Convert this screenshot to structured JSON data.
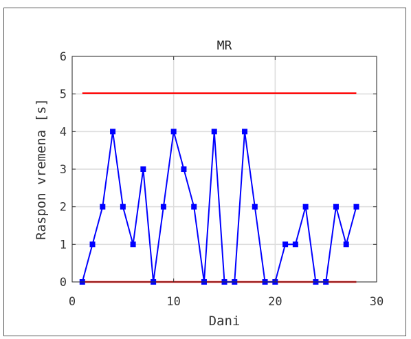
{
  "chart_data": {
    "type": "line",
    "title": "MR",
    "xlabel": "Dani",
    "ylabel": "Raspon vremena [s]",
    "xlim": [
      0,
      30
    ],
    "ylim": [
      0,
      6
    ],
    "xticks": [
      0,
      10,
      20,
      30
    ],
    "yticks": [
      0,
      1,
      2,
      3,
      4,
      5,
      6
    ],
    "grid": true,
    "colors": {
      "series": "#0000ff",
      "limits": "#ff0000",
      "grid": "#dcdcdc",
      "axes": "#333333"
    },
    "series": [
      {
        "x": [
          1,
          2,
          3,
          4,
          5,
          6,
          7,
          8,
          9,
          10,
          11,
          12,
          13,
          14,
          15,
          16,
          17,
          18,
          19,
          20,
          21,
          22,
          23,
          24,
          25,
          26,
          27,
          28
        ],
        "values": [
          0,
          1,
          2,
          4,
          2,
          1,
          3,
          0,
          2,
          4,
          3,
          2,
          0,
          4,
          0,
          0,
          4,
          2,
          0,
          0,
          1,
          1,
          2,
          0,
          0,
          2,
          1,
          2
        ],
        "marker": "square"
      }
    ],
    "reference_lines": [
      {
        "y": 5.02,
        "x_range": [
          1,
          28
        ]
      },
      {
        "y": 0,
        "x_range": [
          1,
          28
        ]
      }
    ]
  }
}
